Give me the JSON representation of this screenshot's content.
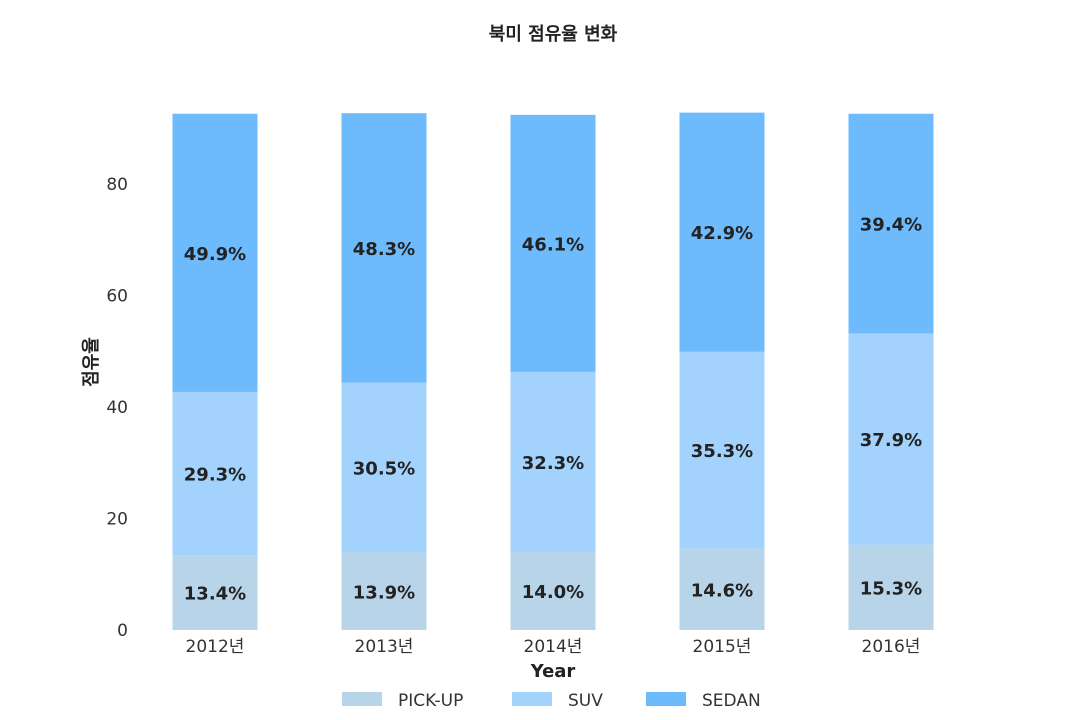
{
  "chart_data": {
    "type": "bar",
    "stacked": true,
    "title": "북미 점유율 변화",
    "xlabel": "Year",
    "ylabel": "점유율",
    "categories": [
      "2012년",
      "2013년",
      "2014년",
      "2015년",
      "2016년"
    ],
    "series": [
      {
        "name": "PICK-UP",
        "color": "#b8d4e8",
        "values": [
          13.4,
          13.9,
          14.0,
          14.6,
          15.3
        ],
        "labels": [
          "13.4%",
          "13.9%",
          "14.0%",
          "14.6%",
          "15.3%"
        ]
      },
      {
        "name": "SUV",
        "color": "#a3d3fd",
        "values": [
          29.3,
          30.5,
          32.3,
          35.3,
          37.9
        ],
        "labels": [
          "29.3%",
          "30.5%",
          "32.3%",
          "35.3%",
          "37.9%"
        ]
      },
      {
        "name": "SEDAN",
        "color": "#6dbbfd",
        "values": [
          49.9,
          48.3,
          46.1,
          42.9,
          39.4
        ],
        "labels": [
          "49.9%",
          "48.3%",
          "46.1%",
          "42.9%",
          "39.4%"
        ]
      }
    ],
    "yticks": [
      "0",
      "20",
      "40",
      "60",
      "80"
    ],
    "ylim": [
      0,
      92.6
    ],
    "grid": false,
    "legend_position": "bottom"
  }
}
